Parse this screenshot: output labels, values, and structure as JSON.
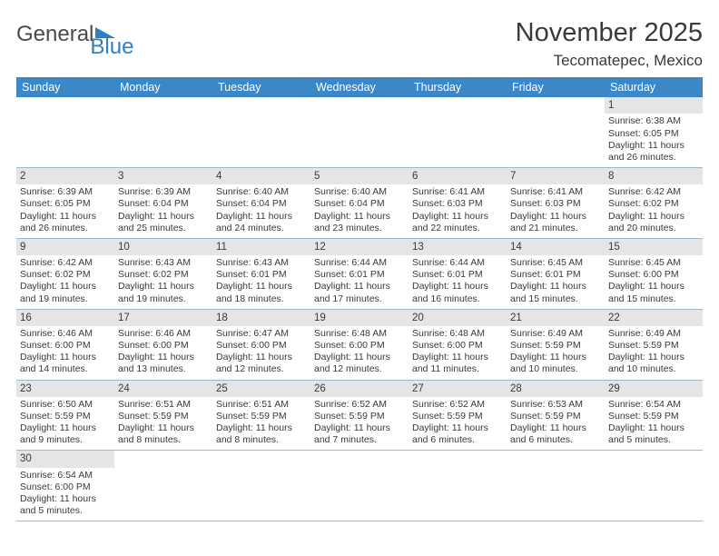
{
  "logo": {
    "text1": "General",
    "text2": "Blue"
  },
  "title": "November 2025",
  "location": "Tecomatepec, Mexico",
  "colors": {
    "header_bg": "#3b87c8",
    "header_text": "#ffffff",
    "daynum_bg": "#e5e5e5",
    "text": "#3a3a3a",
    "rule": "#9fb8cf"
  },
  "weekdays": [
    "Sunday",
    "Monday",
    "Tuesday",
    "Wednesday",
    "Thursday",
    "Friday",
    "Saturday"
  ],
  "weeks": [
    [
      {
        "n": "",
        "lines": [
          "",
          "",
          "",
          ""
        ]
      },
      {
        "n": "",
        "lines": [
          "",
          "",
          "",
          ""
        ]
      },
      {
        "n": "",
        "lines": [
          "",
          "",
          "",
          ""
        ]
      },
      {
        "n": "",
        "lines": [
          "",
          "",
          "",
          ""
        ]
      },
      {
        "n": "",
        "lines": [
          "",
          "",
          "",
          ""
        ]
      },
      {
        "n": "",
        "lines": [
          "",
          "",
          "",
          ""
        ]
      },
      {
        "n": "1",
        "lines": [
          "Sunrise: 6:38 AM",
          "Sunset: 6:05 PM",
          "Daylight: 11 hours",
          "and 26 minutes."
        ]
      }
    ],
    [
      {
        "n": "2",
        "lines": [
          "Sunrise: 6:39 AM",
          "Sunset: 6:05 PM",
          "Daylight: 11 hours",
          "and 26 minutes."
        ]
      },
      {
        "n": "3",
        "lines": [
          "Sunrise: 6:39 AM",
          "Sunset: 6:04 PM",
          "Daylight: 11 hours",
          "and 25 minutes."
        ]
      },
      {
        "n": "4",
        "lines": [
          "Sunrise: 6:40 AM",
          "Sunset: 6:04 PM",
          "Daylight: 11 hours",
          "and 24 minutes."
        ]
      },
      {
        "n": "5",
        "lines": [
          "Sunrise: 6:40 AM",
          "Sunset: 6:04 PM",
          "Daylight: 11 hours",
          "and 23 minutes."
        ]
      },
      {
        "n": "6",
        "lines": [
          "Sunrise: 6:41 AM",
          "Sunset: 6:03 PM",
          "Daylight: 11 hours",
          "and 22 minutes."
        ]
      },
      {
        "n": "7",
        "lines": [
          "Sunrise: 6:41 AM",
          "Sunset: 6:03 PM",
          "Daylight: 11 hours",
          "and 21 minutes."
        ]
      },
      {
        "n": "8",
        "lines": [
          "Sunrise: 6:42 AM",
          "Sunset: 6:02 PM",
          "Daylight: 11 hours",
          "and 20 minutes."
        ]
      }
    ],
    [
      {
        "n": "9",
        "lines": [
          "Sunrise: 6:42 AM",
          "Sunset: 6:02 PM",
          "Daylight: 11 hours",
          "and 19 minutes."
        ]
      },
      {
        "n": "10",
        "lines": [
          "Sunrise: 6:43 AM",
          "Sunset: 6:02 PM",
          "Daylight: 11 hours",
          "and 19 minutes."
        ]
      },
      {
        "n": "11",
        "lines": [
          "Sunrise: 6:43 AM",
          "Sunset: 6:01 PM",
          "Daylight: 11 hours",
          "and 18 minutes."
        ]
      },
      {
        "n": "12",
        "lines": [
          "Sunrise: 6:44 AM",
          "Sunset: 6:01 PM",
          "Daylight: 11 hours",
          "and 17 minutes."
        ]
      },
      {
        "n": "13",
        "lines": [
          "Sunrise: 6:44 AM",
          "Sunset: 6:01 PM",
          "Daylight: 11 hours",
          "and 16 minutes."
        ]
      },
      {
        "n": "14",
        "lines": [
          "Sunrise: 6:45 AM",
          "Sunset: 6:01 PM",
          "Daylight: 11 hours",
          "and 15 minutes."
        ]
      },
      {
        "n": "15",
        "lines": [
          "Sunrise: 6:45 AM",
          "Sunset: 6:00 PM",
          "Daylight: 11 hours",
          "and 15 minutes."
        ]
      }
    ],
    [
      {
        "n": "16",
        "lines": [
          "Sunrise: 6:46 AM",
          "Sunset: 6:00 PM",
          "Daylight: 11 hours",
          "and 14 minutes."
        ]
      },
      {
        "n": "17",
        "lines": [
          "Sunrise: 6:46 AM",
          "Sunset: 6:00 PM",
          "Daylight: 11 hours",
          "and 13 minutes."
        ]
      },
      {
        "n": "18",
        "lines": [
          "Sunrise: 6:47 AM",
          "Sunset: 6:00 PM",
          "Daylight: 11 hours",
          "and 12 minutes."
        ]
      },
      {
        "n": "19",
        "lines": [
          "Sunrise: 6:48 AM",
          "Sunset: 6:00 PM",
          "Daylight: 11 hours",
          "and 12 minutes."
        ]
      },
      {
        "n": "20",
        "lines": [
          "Sunrise: 6:48 AM",
          "Sunset: 6:00 PM",
          "Daylight: 11 hours",
          "and 11 minutes."
        ]
      },
      {
        "n": "21",
        "lines": [
          "Sunrise: 6:49 AM",
          "Sunset: 5:59 PM",
          "Daylight: 11 hours",
          "and 10 minutes."
        ]
      },
      {
        "n": "22",
        "lines": [
          "Sunrise: 6:49 AM",
          "Sunset: 5:59 PM",
          "Daylight: 11 hours",
          "and 10 minutes."
        ]
      }
    ],
    [
      {
        "n": "23",
        "lines": [
          "Sunrise: 6:50 AM",
          "Sunset: 5:59 PM",
          "Daylight: 11 hours",
          "and 9 minutes."
        ]
      },
      {
        "n": "24",
        "lines": [
          "Sunrise: 6:51 AM",
          "Sunset: 5:59 PM",
          "Daylight: 11 hours",
          "and 8 minutes."
        ]
      },
      {
        "n": "25",
        "lines": [
          "Sunrise: 6:51 AM",
          "Sunset: 5:59 PM",
          "Daylight: 11 hours",
          "and 8 minutes."
        ]
      },
      {
        "n": "26",
        "lines": [
          "Sunrise: 6:52 AM",
          "Sunset: 5:59 PM",
          "Daylight: 11 hours",
          "and 7 minutes."
        ]
      },
      {
        "n": "27",
        "lines": [
          "Sunrise: 6:52 AM",
          "Sunset: 5:59 PM",
          "Daylight: 11 hours",
          "and 6 minutes."
        ]
      },
      {
        "n": "28",
        "lines": [
          "Sunrise: 6:53 AM",
          "Sunset: 5:59 PM",
          "Daylight: 11 hours",
          "and 6 minutes."
        ]
      },
      {
        "n": "29",
        "lines": [
          "Sunrise: 6:54 AM",
          "Sunset: 5:59 PM",
          "Daylight: 11 hours",
          "and 5 minutes."
        ]
      }
    ],
    [
      {
        "n": "30",
        "lines": [
          "Sunrise: 6:54 AM",
          "Sunset: 6:00 PM",
          "Daylight: 11 hours",
          "and 5 minutes."
        ]
      },
      {
        "n": "",
        "lines": [
          "",
          "",
          "",
          ""
        ]
      },
      {
        "n": "",
        "lines": [
          "",
          "",
          "",
          ""
        ]
      },
      {
        "n": "",
        "lines": [
          "",
          "",
          "",
          ""
        ]
      },
      {
        "n": "",
        "lines": [
          "",
          "",
          "",
          ""
        ]
      },
      {
        "n": "",
        "lines": [
          "",
          "",
          "",
          ""
        ]
      },
      {
        "n": "",
        "lines": [
          "",
          "",
          "",
          ""
        ]
      }
    ]
  ]
}
